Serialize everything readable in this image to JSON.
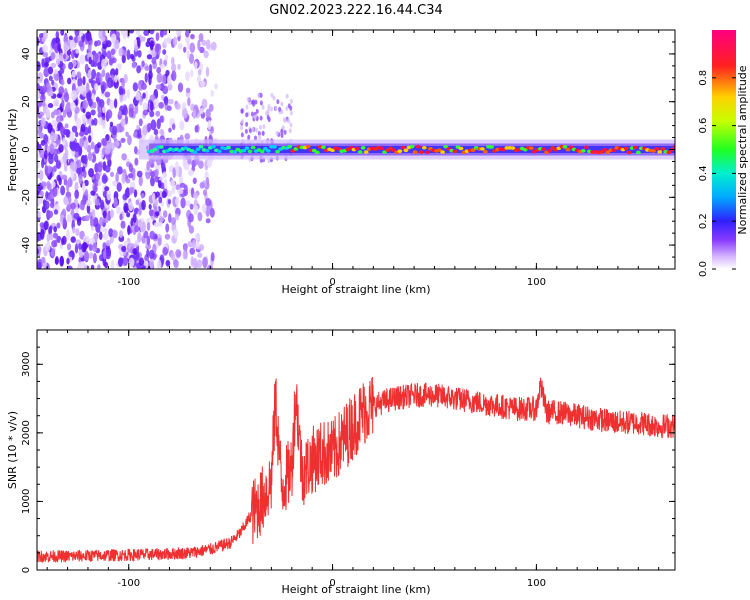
{
  "title": "GN02.2023.222.16.44.C34",
  "colors": {
    "snr_line": "#ee3030",
    "axis": "#000000",
    "background": "#ffffff"
  },
  "chart_data": [
    {
      "type": "heatmap",
      "xlabel": "Height of straight line (km)",
      "ylabel": "Frequency (Hz)",
      "xlim": [
        -145,
        168
      ],
      "ylim": [
        -50,
        50
      ],
      "x_ticks": [
        -100,
        0,
        100
      ],
      "y_ticks": [
        -40,
        -20,
        0,
        20,
        40
      ],
      "colorbar": {
        "label": "Normalized spectral amplitude",
        "range": [
          0,
          1
        ],
        "ticks": [
          "0.0",
          "0.2",
          "0.4",
          "0.6",
          "0.8"
        ],
        "colormap": "rainbow (purple-blue-cyan-green-yellow-red-magenta)"
      },
      "description_of_signal": "Scattered noise from -145 to -60 km; signal line near 0 Hz from about -90 km onward, strongest (red) from about -20 km to 168 km",
      "signal_line_frequency_hz": 0
    },
    {
      "type": "line",
      "xlabel": "Height of straight line (km)",
      "ylabel": "SNR (10 * v/v)",
      "xlim": [
        -145,
        168
      ],
      "ylim": [
        0,
        3500
      ],
      "x_ticks": [
        -100,
        0,
        100
      ],
      "y_ticks": [
        0,
        1000,
        2000,
        3000
      ],
      "series": [
        {
          "x": [
            -145,
            -130,
            -115,
            -100,
            -85,
            -70,
            -60,
            -50,
            -45,
            -40,
            -35,
            -30,
            -28,
            -25,
            -20,
            -18,
            -15,
            -10,
            -5,
            0,
            5,
            10,
            15,
            20,
            25,
            30,
            40,
            50,
            60,
            70,
            80,
            90,
            100,
            102,
            105,
            110,
            120,
            130,
            140,
            150,
            160,
            168
          ],
          "values": [
            200,
            200,
            210,
            220,
            230,
            250,
            300,
            400,
            550,
            800,
            1000,
            1300,
            2500,
            1200,
            1500,
            2600,
            1400,
            1600,
            1700,
            1700,
            1900,
            2100,
            2300,
            2400,
            2450,
            2500,
            2550,
            2550,
            2500,
            2450,
            2400,
            2350,
            2350,
            2700,
            2300,
            2300,
            2250,
            2200,
            2150,
            2150,
            2100,
            2100
          ]
        }
      ]
    }
  ]
}
